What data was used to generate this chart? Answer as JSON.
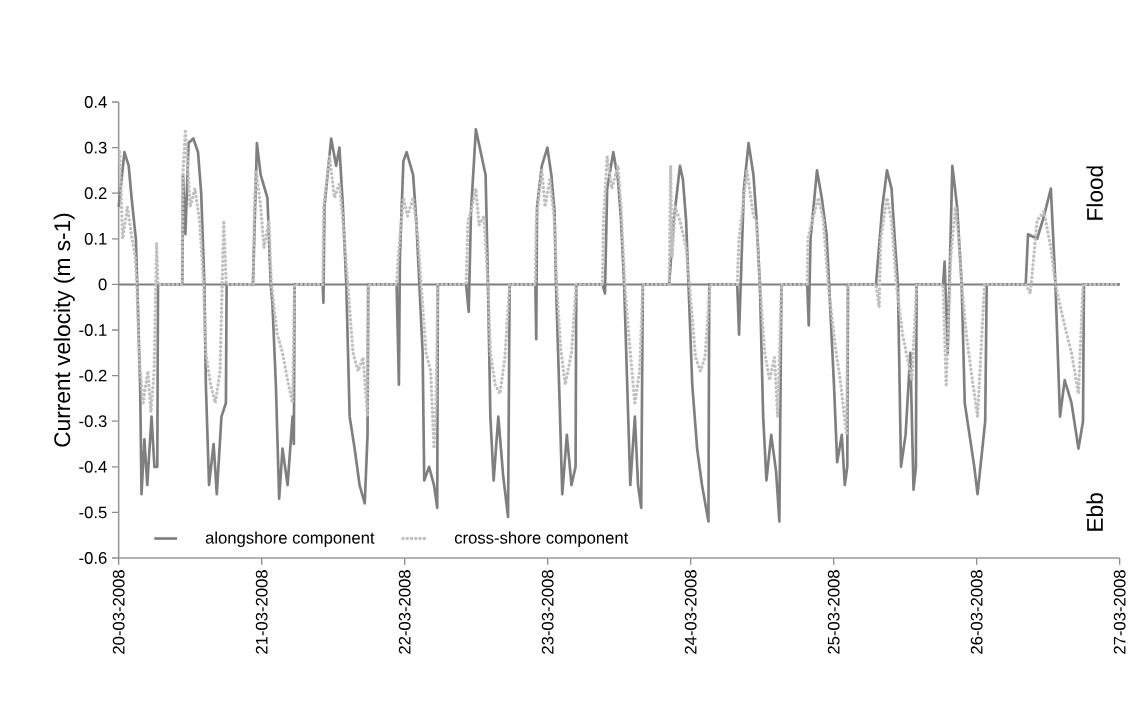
{
  "chart_data": {
    "type": "line",
    "ylabel": "Current velocity (m s-1)",
    "xlim": [
      "2008-03-20",
      "2008-03-27"
    ],
    "ylim": [
      -0.6,
      0.4
    ],
    "xticks": [
      {
        "value": "2008-03-20",
        "label": "20-03-2008"
      },
      {
        "value": "2008-03-21",
        "label": "21-03-2008"
      },
      {
        "value": "2008-03-22",
        "label": "22-03-2008"
      },
      {
        "value": "2008-03-23",
        "label": "23-03-2008"
      },
      {
        "value": "2008-03-24",
        "label": "24-03-2008"
      },
      {
        "value": "2008-03-25",
        "label": "25-03-2008"
      },
      {
        "value": "2008-03-26",
        "label": "26-03-2008"
      },
      {
        "value": "2008-03-27",
        "label": "27-03-2008"
      }
    ],
    "yticks": [
      -0.6,
      -0.5,
      -0.4,
      -0.3,
      -0.2,
      -0.1,
      0,
      0.1,
      0.2,
      0.3,
      0.4
    ],
    "legend": "bottom left",
    "marker": "none",
    "ref_lines": [
      {
        "axis": "y",
        "value": 0,
        "color": "#7f7f7f"
      }
    ],
    "annotations": [
      "Flood",
      "Ebb"
    ],
    "series": [
      {
        "name": "alongshore component",
        "color": "#7f7f7f",
        "line_style": "solid",
        "x": [
          "2008-03-20T00:00",
          "2008-03-20T00:58",
          "2008-03-20T01:41",
          "2008-03-20T02:10",
          "2008-03-20T02:53",
          "2008-03-20T03:07",
          "2008-03-20T03:36",
          "2008-03-20T03:50",
          "2008-03-20T04:19",
          "2008-03-20T04:48",
          "2008-03-20T05:31",
          "2008-03-20T06:00",
          "2008-03-20T06:29",
          "2008-03-20T06:36",
          "2008-03-20T10:41",
          "2008-03-20T10:48",
          "2008-03-20T11:12",
          "2008-03-20T11:44",
          "2008-03-20T12:32",
          "2008-03-20T13:19",
          "2008-03-20T13:51",
          "2008-03-20T14:23",
          "2008-03-20T14:38",
          "2008-03-20T15:10",
          "2008-03-20T15:56",
          "2008-03-20T16:28",
          "2008-03-20T17:15",
          "2008-03-20T18:00",
          "2008-03-20T18:07",
          "2008-03-20T22:32",
          "2008-03-20T22:54",
          "2008-03-20T23:12",
          "2008-03-20T23:50",
          "2008-03-21T00:58",
          "2008-03-21T01:31",
          "2008-03-21T01:48",
          "2008-03-21T02:23",
          "2008-03-21T02:56",
          "2008-03-21T03:30",
          "2008-03-21T04:21",
          "2008-03-21T05:11",
          "2008-03-21T05:24",
          "2008-03-21T05:31",
          "2008-03-21T10:15",
          "2008-03-21T10:22",
          "2008-03-21T10:32",
          "2008-03-21T11:40",
          "2008-03-21T12:30",
          "2008-03-21T13:03",
          "2008-03-21T13:38",
          "2008-03-21T14:12",
          "2008-03-21T14:46",
          "2008-03-21T15:36",
          "2008-03-21T16:26",
          "2008-03-21T17:18",
          "2008-03-21T17:46",
          "2008-03-21T17:53",
          "2008-03-21T22:39",
          "2008-03-21T23:02",
          "2008-03-21T23:12",
          "2008-03-21T23:47",
          "2008-03-22T00:20",
          "2008-03-22T01:25",
          "2008-03-22T01:57",
          "2008-03-22T02:28",
          "2008-03-22T03:01",
          "2008-03-22T03:17",
          "2008-03-22T04:06",
          "2008-03-22T04:55",
          "2008-03-22T05:28",
          "2008-03-22T05:34",
          "2008-03-22T10:19",
          "2008-03-22T10:45",
          "2008-03-22T11:08",
          "2008-03-22T11:57",
          "2008-03-22T12:46",
          "2008-03-22T13:35",
          "2008-03-22T13:59",
          "2008-03-22T14:23",
          "2008-03-22T14:56",
          "2008-03-22T15:43",
          "2008-03-22T16:32",
          "2008-03-22T17:21",
          "2008-03-22T17:37",
          "2008-03-22T21:56",
          "2008-03-22T22:05",
          "2008-03-22T22:13",
          "2008-03-22T23:01",
          "2008-03-22T23:57",
          "2008-03-23T00:37",
          "2008-03-23T01:09",
          "2008-03-23T01:24",
          "2008-03-23T01:55",
          "2008-03-23T02:27",
          "2008-03-23T03:13",
          "2008-03-23T04:00",
          "2008-03-23T04:41",
          "2008-03-23T04:48",
          "2008-03-23T09:12",
          "2008-03-23T09:37",
          "2008-03-23T09:59",
          "2008-03-23T11:01",
          "2008-03-23T11:48",
          "2008-03-23T12:19",
          "2008-03-23T12:50",
          "2008-03-23T13:21",
          "2008-03-23T13:52",
          "2008-03-23T14:38",
          "2008-03-23T15:10",
          "2008-03-23T15:42",
          "2008-03-23T15:58",
          "2008-03-23T20:23",
          "2008-03-23T21:10",
          "2008-03-23T22:12",
          "2008-03-23T22:42",
          "2008-03-23T23:14",
          "2008-03-23T23:38",
          "2008-03-24T00:16",
          "2008-03-24T01:05",
          "2008-03-24T01:54",
          "2008-03-24T02:59",
          "2008-03-24T03:07",
          "2008-03-24T07:49",
          "2008-03-24T08:07",
          "2008-03-24T08:56",
          "2008-03-24T09:43",
          "2008-03-24T10:32",
          "2008-03-24T11:04",
          "2008-03-24T11:37",
          "2008-03-24T12:10",
          "2008-03-24T12:43",
          "2008-03-24T13:31",
          "2008-03-24T14:20",
          "2008-03-24T14:53",
          "2008-03-24T15:14",
          "2008-03-24T19:34",
          "2008-03-24T19:49",
          "2008-03-24T20:07",
          "2008-03-24T21:12",
          "2008-03-24T22:00",
          "2008-03-24T22:48",
          "2008-03-24T23:14",
          "2008-03-25T00:03",
          "2008-03-25T00:35",
          "2008-03-25T01:22",
          "2008-03-25T01:52",
          "2008-03-25T02:17",
          "2008-03-25T02:24",
          "2008-03-25T07:06",
          "2008-03-25T08:10",
          "2008-03-25T08:57",
          "2008-03-25T09:43",
          "2008-03-25T10:15",
          "2008-03-25T10:47",
          "2008-03-25T11:18",
          "2008-03-25T12:04",
          "2008-03-25T12:52",
          "2008-03-25T13:24",
          "2008-03-25T13:48",
          "2008-03-25T13:55",
          "2008-03-25T18:22",
          "2008-03-25T18:37",
          "2008-03-25T19:08",
          "2008-03-25T19:55",
          "2008-03-25T20:43",
          "2008-03-25T21:29",
          "2008-03-25T22:00",
          "2008-03-25T22:48",
          "2008-03-25T23:36",
          "2008-03-26T00:09",
          "2008-03-26T01:26",
          "2008-03-26T01:41",
          "2008-03-26T08:14",
          "2008-03-26T08:37",
          "2008-03-26T10:09",
          "2008-03-26T11:18",
          "2008-03-26T12:27",
          "2008-03-26T13:13",
          "2008-03-26T13:59",
          "2008-03-26T14:46",
          "2008-03-26T15:55",
          "2008-03-26T17:05",
          "2008-03-26T17:51",
          "2008-03-26T18:00",
          "2008-03-27T00:00"
        ],
        "values": [
          0.17,
          0.29,
          0.26,
          0.19,
          0.1,
          0,
          -0.22,
          -0.46,
          -0.34,
          -0.44,
          -0.29,
          -0.4,
          -0.4,
          0,
          0,
          0.24,
          0.11,
          0.31,
          0.32,
          0.29,
          0.2,
          0,
          -0.22,
          -0.44,
          -0.35,
          -0.46,
          -0.29,
          -0.26,
          0,
          0,
          0.17,
          0.31,
          0.24,
          0.19,
          0,
          -0.04,
          -0.22,
          -0.47,
          -0.36,
          -0.44,
          -0.29,
          -0.35,
          0,
          0,
          -0.04,
          0.17,
          0.32,
          0.26,
          0.3,
          0.17,
          0,
          -0.29,
          -0.36,
          -0.44,
          -0.48,
          -0.33,
          0,
          0,
          -0.22,
          0.06,
          0.27,
          0.29,
          0.24,
          0.14,
          0,
          -0.15,
          -0.43,
          -0.4,
          -0.44,
          -0.49,
          0,
          0,
          -0.06,
          0.16,
          0.34,
          0.29,
          0.24,
          0,
          -0.29,
          -0.43,
          -0.29,
          -0.42,
          -0.51,
          0,
          0,
          -0.12,
          0.17,
          0.26,
          0.3,
          0.24,
          0.16,
          0,
          -0.22,
          -0.46,
          -0.33,
          -0.44,
          -0.4,
          0,
          0,
          -0.02,
          0.21,
          0.29,
          0.23,
          0.14,
          0,
          -0.22,
          -0.44,
          -0.29,
          -0.44,
          -0.49,
          0,
          0,
          0.14,
          0.26,
          0.23,
          0.14,
          0,
          -0.22,
          -0.36,
          -0.44,
          -0.52,
          0,
          0,
          -0.11,
          0.21,
          0.31,
          0.24,
          0.14,
          0,
          -0.29,
          -0.43,
          -0.33,
          -0.41,
          -0.52,
          0,
          0,
          -0.09,
          0.1,
          0.25,
          0.19,
          0.11,
          0,
          -0.22,
          -0.39,
          -0.33,
          -0.44,
          -0.4,
          0,
          0,
          0.17,
          0.25,
          0.21,
          0.1,
          0,
          -0.4,
          -0.33,
          -0.15,
          -0.45,
          -0.4,
          0,
          0,
          0.05,
          -0.15,
          0.26,
          0.17,
          0,
          -0.26,
          -0.33,
          -0.4,
          -0.46,
          -0.3,
          0,
          0,
          0.11,
          0.1,
          0.15,
          0.21,
          0,
          -0.29,
          -0.21,
          -0.26,
          -0.36,
          -0.3,
          0,
          0
        ]
      },
      {
        "name": "cross-shore component",
        "color": "#c0c0c0",
        "line_style": "dotted",
        "x": [
          "2008-03-20T00:10",
          "2008-03-20T00:40",
          "2008-03-20T01:28",
          "2008-03-20T02:15",
          "2008-03-20T02:47",
          "2008-03-20T03:03",
          "2008-03-20T03:26",
          "2008-03-20T04:06",
          "2008-03-20T04:54",
          "2008-03-20T05:25",
          "2008-03-20T05:57",
          "2008-03-20T06:22",
          "2008-03-20T06:35",
          "2008-03-20T10:41",
          "2008-03-20T10:47",
          "2008-03-20T11:12",
          "2008-03-20T12:00",
          "2008-03-20T12:48",
          "2008-03-20T13:35",
          "2008-03-20T14:15",
          "2008-03-20T14:38",
          "2008-03-20T15:26",
          "2008-03-20T16:13",
          "2008-03-20T17:01",
          "2008-03-20T17:38",
          "2008-03-20T18:03",
          "2008-03-20T22:34",
          "2008-03-20T22:47",
          "2008-03-20T23:04",
          "2008-03-20T23:50",
          "2008-03-21T00:23",
          "2008-03-21T01:13",
          "2008-03-21T01:38",
          "2008-03-21T02:38",
          "2008-03-21T03:30",
          "2008-03-21T04:21",
          "2008-03-21T05:11",
          "2008-03-21T05:31",
          "2008-03-21T10:15",
          "2008-03-21T10:25",
          "2008-03-21T11:23",
          "2008-03-21T12:13",
          "2008-03-21T13:03",
          "2008-03-21T13:38",
          "2008-03-21T14:28",
          "2008-03-21T15:19",
          "2008-03-21T16:11",
          "2008-03-21T17:01",
          "2008-03-21T17:46",
          "2008-03-21T17:53",
          "2008-03-21T22:39",
          "2008-03-21T22:55",
          "2008-03-21T23:47",
          "2008-03-22T00:29",
          "2008-03-22T01:25",
          "2008-03-22T02:14",
          "2008-03-22T02:46",
          "2008-03-22T03:35",
          "2008-03-22T04:22",
          "2008-03-22T04:55",
          "2008-03-22T05:17",
          "2008-03-22T05:34",
          "2008-03-22T10:19",
          "2008-03-22T10:38",
          "2008-03-22T11:08",
          "2008-03-22T11:57",
          "2008-03-22T12:29",
          "2008-03-22T13:18",
          "2008-03-22T13:59",
          "2008-03-22T14:23",
          "2008-03-22T15:12",
          "2008-03-22T16:00",
          "2008-03-22T16:49",
          "2008-03-22T17:37",
          "2008-03-22T21:56",
          "2008-03-22T22:05",
          "2008-03-22T23:01",
          "2008-03-22T23:34",
          "2008-03-23T00:22",
          "2008-03-23T01:09",
          "2008-03-23T01:31",
          "2008-03-23T02:11",
          "2008-03-23T02:57",
          "2008-03-23T04:00",
          "2008-03-23T04:47",
          "2008-03-23T09:12",
          "2008-03-23T09:22",
          "2008-03-23T09:59",
          "2008-03-23T10:45",
          "2008-03-23T11:48",
          "2008-03-23T12:19",
          "2008-03-23T12:56",
          "2008-03-23T13:52",
          "2008-03-23T14:38",
          "2008-03-23T15:26",
          "2008-03-23T15:58",
          "2008-03-23T20:23",
          "2008-03-23T20:38",
          "2008-03-23T20:53",
          "2008-03-23T21:24",
          "2008-03-23T22:12",
          "2008-03-23T23:14",
          "2008-03-23T23:47",
          "2008-03-24T00:49",
          "2008-03-24T01:38",
          "2008-03-24T02:25",
          "2008-03-24T03:14",
          "2008-03-24T07:49",
          "2008-03-24T08:07",
          "2008-03-24T09:27",
          "2008-03-24T10:32",
          "2008-03-24T11:02",
          "2008-03-24T11:37",
          "2008-03-24T12:26",
          "2008-03-24T13:15",
          "2008-03-24T14:04",
          "2008-03-24T14:36",
          "2008-03-24T15:14",
          "2008-03-24T19:34",
          "2008-03-24T19:41",
          "2008-03-24T20:23",
          "2008-03-24T21:27",
          "2008-03-24T22:16",
          "2008-03-24T23:04",
          "2008-03-25T00:19",
          "2008-03-25T01:06",
          "2008-03-25T02:10",
          "2008-03-25T02:24",
          "2008-03-25T07:06",
          "2008-03-25T07:38",
          "2008-03-25T07:54",
          "2008-03-25T08:57",
          "2008-03-25T09:43",
          "2008-03-25T10:31",
          "2008-03-25T11:34",
          "2008-03-25T12:20",
          "2008-03-25T13:08",
          "2008-03-25T13:55",
          "2008-03-25T18:22",
          "2008-03-25T18:53",
          "2008-03-25T19:39",
          "2008-03-25T20:27",
          "2008-03-25T20:59",
          "2008-03-25T21:29",
          "2008-03-25T22:16",
          "2008-03-25T23:04",
          "2008-03-26T00:09",
          "2008-03-26T01:19",
          "2008-03-26T08:14",
          "2008-03-26T09:00",
          "2008-03-26T10:09",
          "2008-03-26T11:18",
          "2008-03-26T12:27",
          "2008-03-26T13:13",
          "2008-03-26T14:46",
          "2008-03-26T15:55",
          "2008-03-26T17:05",
          "2008-03-26T17:51",
          "2008-03-27T00:00"
        ],
        "values": [
          0.29,
          0.1,
          0.17,
          0.1,
          0.06,
          0,
          -0.16,
          -0.26,
          -0.19,
          -0.28,
          -0.19,
          0.09,
          0,
          0,
          0.24,
          0.34,
          0.17,
          0.21,
          0.14,
          0,
          -0.15,
          -0.22,
          -0.26,
          -0.19,
          0.14,
          0,
          0,
          0.17,
          0.25,
          0.17,
          0.08,
          0.14,
          0,
          -0.11,
          -0.15,
          -0.21,
          -0.26,
          0,
          0,
          0.17,
          0.28,
          0.19,
          0.22,
          0.14,
          0,
          -0.15,
          -0.19,
          -0.16,
          -0.29,
          0,
          0,
          0.06,
          0.19,
          0.15,
          0.19,
          0.1,
          0,
          -0.15,
          -0.19,
          -0.36,
          -0.25,
          0,
          0,
          0.14,
          0.16,
          0.21,
          0.13,
          0.15,
          0,
          -0.15,
          -0.22,
          -0.24,
          -0.16,
          0,
          0,
          0.14,
          0.25,
          0.17,
          0.23,
          0.14,
          0,
          -0.14,
          -0.22,
          -0.15,
          0,
          0,
          0.14,
          0.28,
          0.21,
          0.26,
          0.17,
          0,
          -0.15,
          -0.26,
          -0.19,
          0,
          0,
          0.26,
          0.06,
          0.17,
          0.14,
          0.08,
          0,
          -0.16,
          -0.19,
          -0.16,
          0,
          0,
          0.1,
          0.25,
          0.15,
          0.14,
          0,
          -0.15,
          -0.21,
          -0.16,
          -0.29,
          0,
          0,
          0.1,
          0.14,
          0.19,
          0.14,
          0,
          -0.14,
          -0.21,
          -0.33,
          0,
          0,
          -0.05,
          0.1,
          0.19,
          0.14,
          0,
          -0.11,
          -0.16,
          -0.21,
          0,
          0,
          -0.22,
          0.06,
          0.17,
          0.1,
          0,
          -0.11,
          -0.19,
          -0.29,
          0,
          0,
          -0.02,
          0.14,
          0.16,
          0.08,
          0,
          -0.09,
          -0.15,
          -0.24,
          0,
          0
        ]
      }
    ]
  }
}
